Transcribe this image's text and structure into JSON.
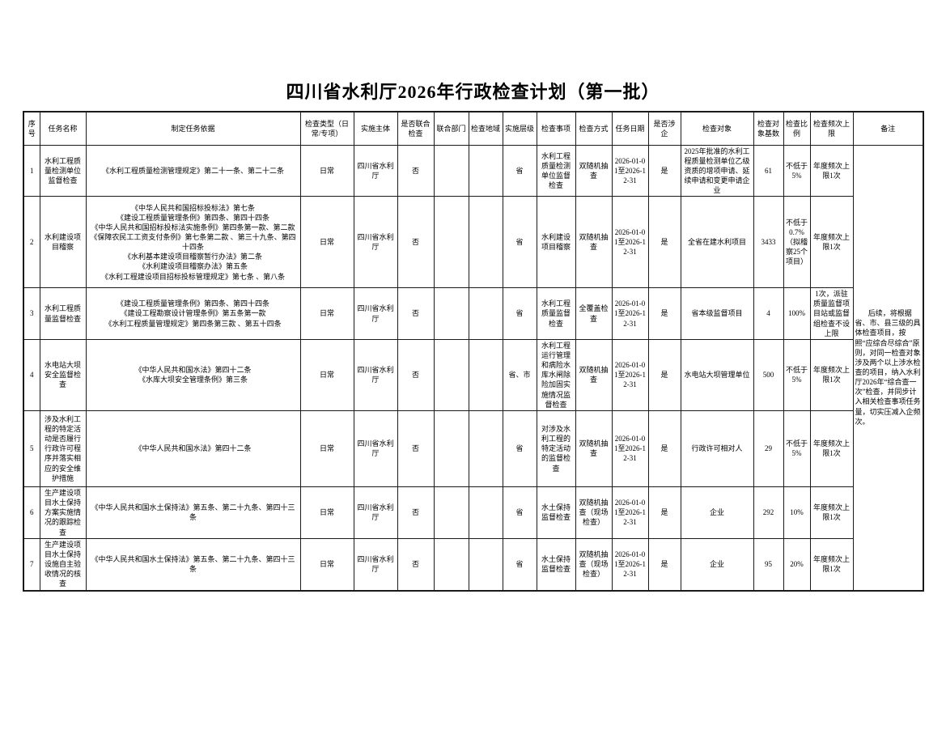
{
  "title": "四川省水利厅2026年行政检查计划（第一批）",
  "table": {
    "headers": [
      "序号",
      "任务名称",
      "制定任务依据",
      "检查类型（日常/专项）",
      "实施主体",
      "是否联合检查",
      "联合部门",
      "检查地域",
      "实施层级",
      "检查事项",
      "检查方式",
      "任务日期",
      "是否涉企",
      "检查对象",
      "检查对象基数",
      "检查比例",
      "检查频次上限",
      "备注"
    ],
    "remark": "后续，将根据省、市、县三级的具体检查项目，按照“应综合尽综合”原则，对同一检查对象涉及两个以上涉水检查的项目，纳入水利厅2026年“综合查一次”检查，并同步计入相关检查事项任务量，切实压减入企频次。",
    "rows": [
      {
        "seq": "1",
        "task_name": "水利工程质量检测单位监督检查",
        "basis": [
          "《水利工程质量检测管理规定》第二十一条、第二十二条"
        ],
        "type": "日常",
        "implementer": "四川省水利厅",
        "joint": "否",
        "joint_dept": "",
        "region": "",
        "level": "省",
        "item": "水利工程质量检测单位监督检查",
        "method": "双随机抽查",
        "date": "2026-01-01至2026-12-31",
        "involves_enterprise": "是",
        "target": "2025年批准的水利工程质量检测单位乙级资质的增项申请、延续申请和变更申请企业",
        "base": "61",
        "ratio": "不低于5%",
        "frequency": "年度频次上限1次"
      },
      {
        "seq": "2",
        "task_name": "水利建设项目稽察",
        "basis": [
          "《中华人民共和国招标投标法》第七条",
          "《建设工程质量管理条例》第四条、第四十四条",
          "《中华人民共和国招标投标法实施条例》第四条第一款、第二款",
          "《保障农民工工资支付条例》第七条第二款 、第三十九条、第四十四条",
          "《水利基本建设项目稽察暂行办法》第二条",
          "《水利建设项目稽察办法》第五条",
          "《水利工程建设项目招标投标管理规定》第七条 、第八条"
        ],
        "type": "日常",
        "implementer": "四川省水利厅",
        "joint": "否",
        "joint_dept": "",
        "region": "",
        "level": "省",
        "item": "水利建设项目稽察",
        "method": "双随机抽查",
        "date": "2026-01-01至2026-12-31",
        "involves_enterprise": "是",
        "target": "全省在建水利项目",
        "base": "3433",
        "ratio": "不低于0.7%（拟稽察25个项目）",
        "frequency": "年度频次上限1次"
      },
      {
        "seq": "3",
        "task_name": "水利工程质量监督检查",
        "basis": [
          "《建设工程质量管理条例》第四条、第四十四条",
          "《建设工程勘察设计管理条例》第五条第一款",
          "《水利工程质量管理规定》第四条第三款 、第五十四条"
        ],
        "type": "日常",
        "implementer": "四川省水利厅",
        "joint": "否",
        "joint_dept": "",
        "region": "",
        "level": "省",
        "item": "水利工程质量监督检查",
        "method": "全覆盖检查",
        "date": "2026-01-01至2026-12-31",
        "involves_enterprise": "是",
        "target": "省本级监督项目",
        "base": "4",
        "ratio": "100%",
        "frequency": "1次，派驻质量监督项目站或监督组检查不设上限"
      },
      {
        "seq": "4",
        "task_name": "水电站大坝安全监督检查",
        "basis": [
          "《中华人民共和国水法》第四十二条",
          "《水库大坝安全管理条例》第三条"
        ],
        "type": "日常",
        "implementer": "四川省水利厅",
        "joint": "否",
        "joint_dept": "",
        "region": "",
        "level": "省、市",
        "item": "水利工程运行管理和病险水库水闸除险加固实施情况监督检查",
        "method": "双随机抽查",
        "date": "2026-01-01至2026-12-31",
        "involves_enterprise": "是",
        "target": "水电站大坝管理单位",
        "base": "500",
        "ratio": "不低于5%",
        "frequency": "年度频次上限1次"
      },
      {
        "seq": "5",
        "task_name": "涉及水利工程的特定活动是否履行行政许可程序并落实相应的安全维护措施",
        "basis": [
          "《中华人民共和国水法》第四十二条"
        ],
        "type": "日常",
        "implementer": "四川省水利厅",
        "joint": "否",
        "joint_dept": "",
        "region": "",
        "level": "省",
        "item": "对涉及水利工程的特定活动的监督检查",
        "method": "双随机抽查",
        "date": "2026-01-01至2026-12-31",
        "involves_enterprise": "是",
        "target": "行政许可相对人",
        "base": "29",
        "ratio": "不低于5%",
        "frequency": "年度频次上限1次"
      },
      {
        "seq": "6",
        "task_name": "生产建设项目水土保持方案实施情况的跟踪检查",
        "basis": [
          "《中华人民共和国水土保持法》第五条、第二十九条、第四十三条"
        ],
        "type": "日常",
        "implementer": "四川省水利厅",
        "joint": "否",
        "joint_dept": "",
        "region": "",
        "level": "省",
        "item": "水土保持监督检查",
        "method": "双随机抽查（现场检查）",
        "date": "2026-01-01至2026-12-31",
        "involves_enterprise": "是",
        "target": "企业",
        "base": "292",
        "ratio": "10%",
        "frequency": "年度频次上限1次"
      },
      {
        "seq": "7",
        "task_name": "生产建设项目水土保持设施自主验收情况的核查",
        "basis": [
          "《中华人民共和国水土保持法》第五条、第二十九条、第四十三条"
        ],
        "type": "日常",
        "implementer": "四川省水利厅",
        "joint": "否",
        "joint_dept": "",
        "region": "",
        "level": "省",
        "item": "水土保持监督检查",
        "method": "双随机抽查（现场检查）",
        "date": "2026-01-01至2026-12-31",
        "involves_enterprise": "是",
        "target": "企业",
        "base": "95",
        "ratio": "20%",
        "frequency": "年度频次上限1次"
      }
    ]
  }
}
